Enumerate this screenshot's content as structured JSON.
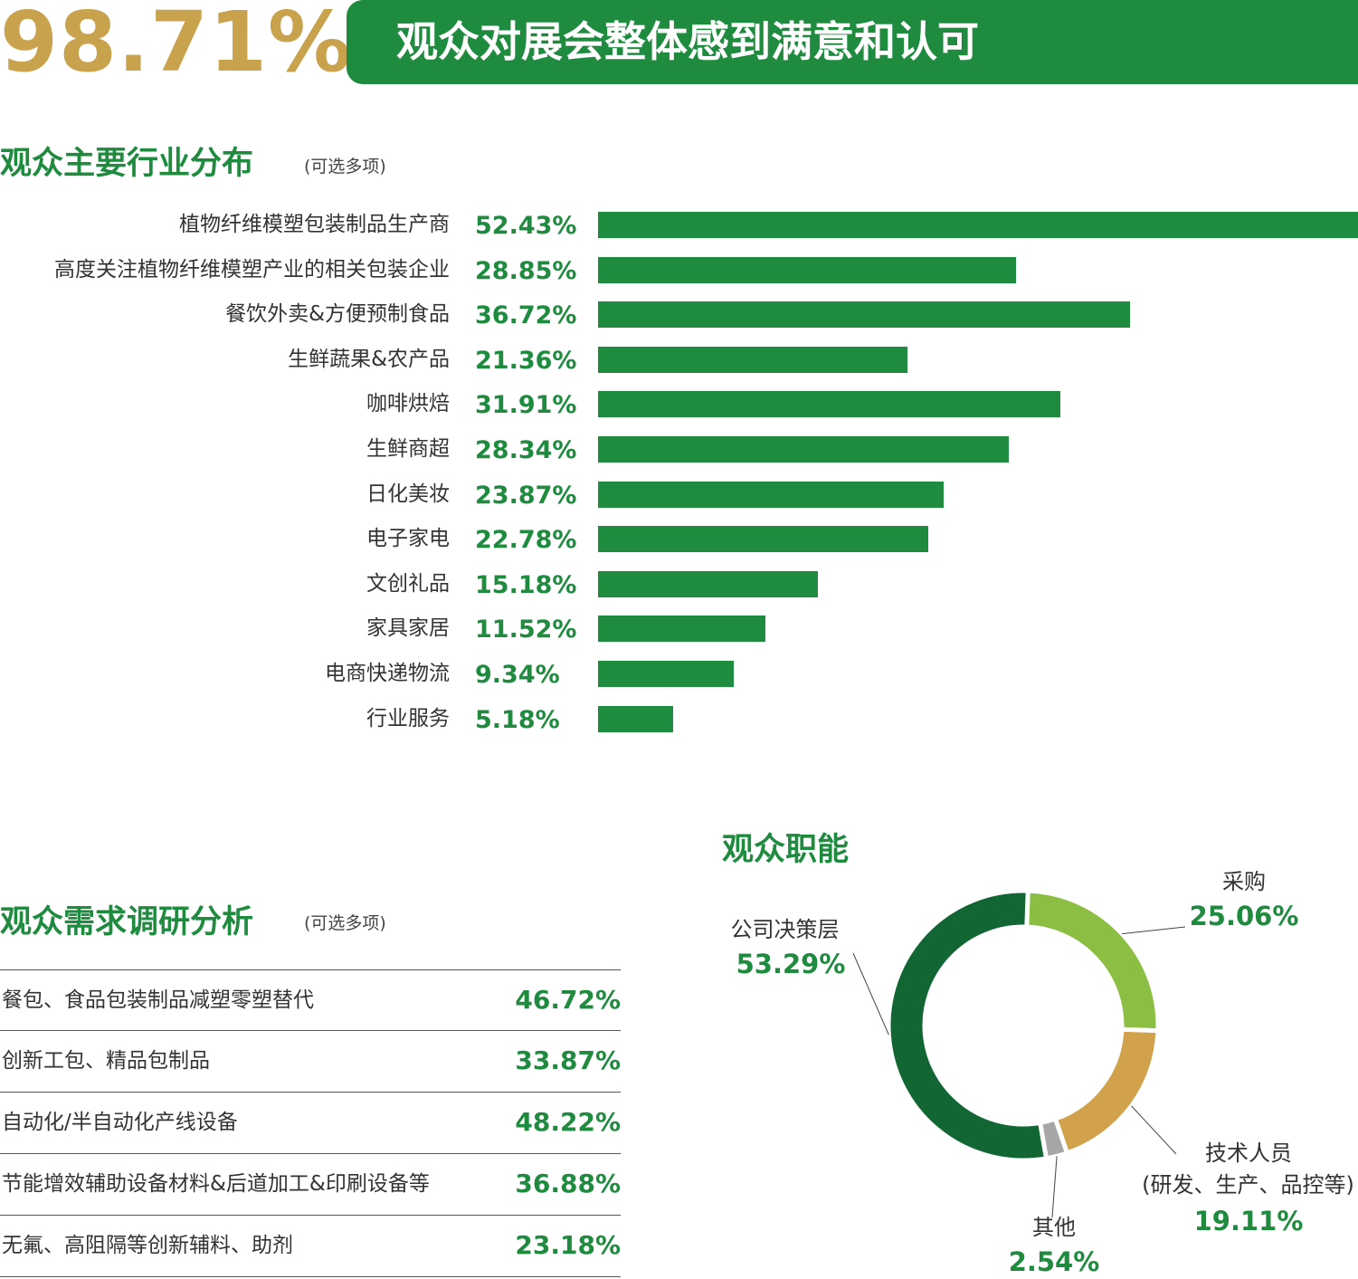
{
  "header": {
    "satisfaction_pct": "98.71%",
    "banner_text": "观众对展会整体感到满意和认可"
  },
  "colors": {
    "green": "#1E8B3F",
    "gold": "#C9A24D",
    "dark_green": "#116633",
    "light_green": "#8BBE43",
    "tan": "#D1A14B",
    "gray": "#A6A6A6"
  },
  "industry": {
    "title": "观众主要行业分布",
    "note": "(可选多项)"
  },
  "demand": {
    "title": "观众需求调研分析",
    "note": "(可选多项)",
    "rows": [
      {
        "label": "餐包、食品包装制品减塑零塑替代",
        "value": "46.72%"
      },
      {
        "label": "创新工包、精品包制品",
        "value": "33.87%"
      },
      {
        "label": "自动化/半自动化产线设备",
        "value": "48.22%"
      },
      {
        "label": "节能增效辅助设备材料&后道加工&印刷设备等",
        "value": "36.88%"
      },
      {
        "label": "无氟、高阻隔等创新辅料、助剂",
        "value": "23.18%"
      }
    ]
  },
  "roles": {
    "title": "观众职能"
  },
  "chart_data": [
    {
      "type": "bar",
      "orientation": "horizontal",
      "categories": [
        "植物纤维模塑包装制品生产商",
        "高度关注植物纤维模塑产业的相关包装企业",
        "餐饮外卖&方便预制食品",
        "生鲜蔬果&农产品",
        "咖啡烘焙",
        "生鲜商超",
        "日化美妆",
        "电子家电",
        "文创礼品",
        "家具家居",
        "电商快递物流",
        "行业服务"
      ],
      "values": [
        52.43,
        28.85,
        36.72,
        21.36,
        31.91,
        28.34,
        23.87,
        22.78,
        15.18,
        11.52,
        9.34,
        5.18
      ],
      "value_labels": [
        "52.43%",
        "28.85%",
        "36.72%",
        "21.36%",
        "31.91%",
        "28.34%",
        "23.87%",
        "22.78%",
        "15.18%",
        "11.52%",
        "9.34%",
        "5.18%"
      ],
      "color": "#1E8B3F",
      "grid": false
    },
    {
      "type": "pie",
      "variant": "donut",
      "slices": [
        {
          "label": "采购",
          "value": 25.06,
          "value_label": "25.06%",
          "color": "#8BBE43"
        },
        {
          "label": "技术人员",
          "sublabel": "(研发、生产、品控等)",
          "value": 19.11,
          "value_label": "19.11%",
          "color": "#D1A14B"
        },
        {
          "label": "其他",
          "value": 2.54,
          "value_label": "2.54%",
          "color": "#A6A6A6"
        },
        {
          "label": "公司决策层",
          "value": 53.29,
          "value_label": "53.29%",
          "color": "#116633"
        }
      ]
    }
  ]
}
